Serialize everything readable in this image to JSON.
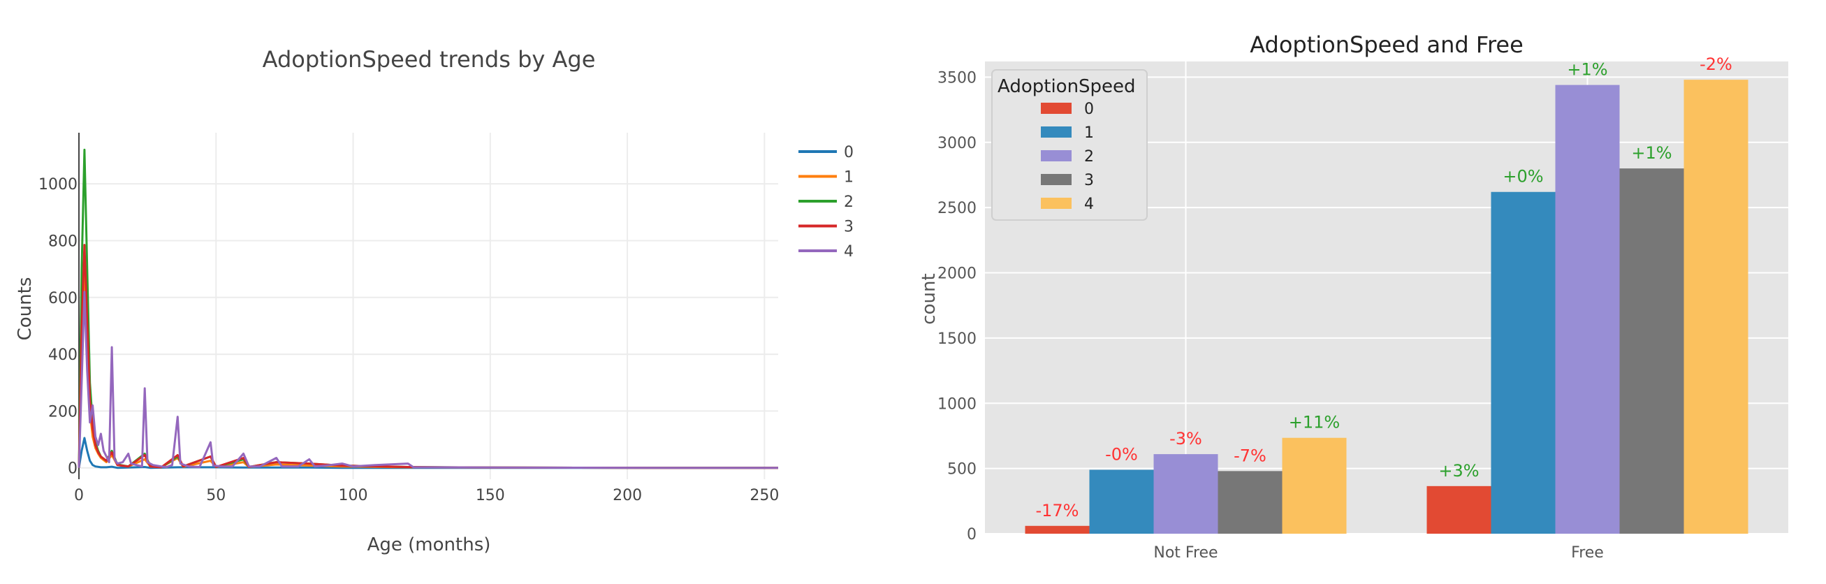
{
  "chart_data": [
    {
      "type": "line",
      "title": "AdoptionSpeed trends by Age",
      "xlabel": "Age (months)",
      "ylabel": "Counts",
      "xlim": [
        0,
        255
      ],
      "ylim": [
        -40,
        1180
      ],
      "xticks": [
        0,
        50,
        100,
        150,
        200,
        250
      ],
      "yticks": [
        0,
        200,
        400,
        600,
        800,
        1000
      ],
      "grid": true,
      "legend_position": "top-right",
      "series": [
        {
          "name": "0",
          "color": "#1f77b4",
          "points": [
            [
              0,
              0
            ],
            [
              1,
              60
            ],
            [
              2,
              105
            ],
            [
              3,
              60
            ],
            [
              4,
              25
            ],
            [
              5,
              10
            ],
            [
              6,
              5
            ],
            [
              8,
              2
            ],
            [
              10,
              2
            ],
            [
              12,
              4
            ],
            [
              14,
              0
            ],
            [
              24,
              3
            ],
            [
              26,
              0
            ],
            [
              36,
              2
            ],
            [
              48,
              2
            ],
            [
              60,
              1
            ],
            [
              72,
              1
            ],
            [
              84,
              1
            ],
            [
              96,
              0
            ],
            [
              120,
              0
            ],
            [
              200,
              0
            ],
            [
              250,
              0
            ]
          ]
        },
        {
          "name": "1",
          "color": "#ff7f0e",
          "points": [
            [
              0,
              0
            ],
            [
              1,
              430
            ],
            [
              2,
              700
            ],
            [
              3,
              420
            ],
            [
              4,
              200
            ],
            [
              5,
              110
            ],
            [
              6,
              70
            ],
            [
              7,
              50
            ],
            [
              8,
              35
            ],
            [
              10,
              20
            ],
            [
              12,
              45
            ],
            [
              14,
              10
            ],
            [
              18,
              5
            ],
            [
              24,
              30
            ],
            [
              26,
              5
            ],
            [
              30,
              2
            ],
            [
              36,
              35
            ],
            [
              38,
              4
            ],
            [
              48,
              25
            ],
            [
              50,
              3
            ],
            [
              60,
              20
            ],
            [
              62,
              3
            ],
            [
              72,
              12
            ],
            [
              84,
              8
            ],
            [
              96,
              5
            ],
            [
              120,
              2
            ],
            [
              150,
              1
            ],
            [
              212,
              0
            ],
            [
              255,
              0
            ]
          ]
        },
        {
          "name": "2",
          "color": "#2ca02c",
          "points": [
            [
              0,
              0
            ],
            [
              1,
              700
            ],
            [
              2,
              1120
            ],
            [
              3,
              700
            ],
            [
              4,
              300
            ],
            [
              5,
              160
            ],
            [
              6,
              90
            ],
            [
              7,
              60
            ],
            [
              8,
              40
            ],
            [
              10,
              25
            ],
            [
              12,
              60
            ],
            [
              14,
              12
            ],
            [
              18,
              5
            ],
            [
              24,
              50
            ],
            [
              26,
              6
            ],
            [
              30,
              2
            ],
            [
              36,
              40
            ],
            [
              38,
              5
            ],
            [
              48,
              40
            ],
            [
              50,
              3
            ],
            [
              60,
              30
            ],
            [
              62,
              3
            ],
            [
              72,
              20
            ],
            [
              84,
              15
            ],
            [
              96,
              8
            ],
            [
              120,
              3
            ],
            [
              150,
              1
            ],
            [
              212,
              0
            ],
            [
              255,
              0
            ]
          ]
        },
        {
          "name": "3",
          "color": "#d62728",
          "points": [
            [
              0,
              0
            ],
            [
              1,
              500
            ],
            [
              2,
              785
            ],
            [
              3,
              520
            ],
            [
              4,
              240
            ],
            [
              5,
              140
            ],
            [
              6,
              80
            ],
            [
              7,
              55
            ],
            [
              8,
              40
            ],
            [
              10,
              25
            ],
            [
              12,
              55
            ],
            [
              14,
              10
            ],
            [
              18,
              5
            ],
            [
              24,
              45
            ],
            [
              26,
              5
            ],
            [
              30,
              2
            ],
            [
              36,
              45
            ],
            [
              38,
              5
            ],
            [
              48,
              40
            ],
            [
              50,
              3
            ],
            [
              60,
              35
            ],
            [
              62,
              3
            ],
            [
              72,
              20
            ],
            [
              84,
              15
            ],
            [
              96,
              8
            ],
            [
              120,
              3
            ],
            [
              150,
              1
            ],
            [
              212,
              0
            ],
            [
              255,
              0
            ]
          ]
        },
        {
          "name": "4",
          "color": "#9467bd",
          "points": [
            [
              0,
              0
            ],
            [
              1,
              300
            ],
            [
              2,
              620
            ],
            [
              3,
              340
            ],
            [
              4,
              160
            ],
            [
              5,
              220
            ],
            [
              6,
              110
            ],
            [
              7,
              80
            ],
            [
              8,
              120
            ],
            [
              9,
              60
            ],
            [
              10,
              40
            ],
            [
              11,
              20
            ],
            [
              12,
              425
            ],
            [
              13,
              30
            ],
            [
              14,
              15
            ],
            [
              16,
              20
            ],
            [
              18,
              50
            ],
            [
              19,
              15
            ],
            [
              21,
              10
            ],
            [
              23,
              5
            ],
            [
              24,
              280
            ],
            [
              25,
              20
            ],
            [
              27,
              10
            ],
            [
              30,
              5
            ],
            [
              32,
              3
            ],
            [
              34,
              10
            ],
            [
              36,
              180
            ],
            [
              37,
              15
            ],
            [
              40,
              5
            ],
            [
              44,
              3
            ],
            [
              48,
              90
            ],
            [
              49,
              8
            ],
            [
              52,
              5
            ],
            [
              56,
              5
            ],
            [
              60,
              50
            ],
            [
              62,
              5
            ],
            [
              66,
              5
            ],
            [
              72,
              35
            ],
            [
              74,
              5
            ],
            [
              80,
              5
            ],
            [
              84,
              30
            ],
            [
              86,
              5
            ],
            [
              90,
              8
            ],
            [
              96,
              15
            ],
            [
              100,
              5
            ],
            [
              108,
              10
            ],
            [
              120,
              15
            ],
            [
              122,
              2
            ],
            [
              150,
              1
            ],
            [
              212,
              0
            ],
            [
              255,
              0
            ]
          ]
        }
      ]
    },
    {
      "type": "bar",
      "title": "AdoptionSpeed and Free",
      "xlabel": "",
      "ylabel": "count",
      "ylim": [
        0,
        3620
      ],
      "yticks": [
        0,
        500,
        1000,
        1500,
        2000,
        2500,
        3000,
        3500
      ],
      "grid": true,
      "legend_position": "top-left",
      "legend_title": "AdoptionSpeed",
      "categories": [
        "Not Free",
        "Free"
      ],
      "series": [
        {
          "name": "0",
          "color": "#e24a33",
          "values": [
            60,
            365
          ],
          "labels": [
            "-17%",
            "+3%"
          ]
        },
        {
          "name": "1",
          "color": "#348abd",
          "values": [
            490,
            2620
          ],
          "labels": [
            "-0%",
            "+0%"
          ]
        },
        {
          "name": "2",
          "color": "#988ed5",
          "values": [
            610,
            3440
          ],
          "labels": [
            "-3%",
            "+1%"
          ]
        },
        {
          "name": "3",
          "color": "#777777",
          "values": [
            480,
            2800
          ],
          "labels": [
            "-7%",
            "+1%"
          ]
        },
        {
          "name": "4",
          "color": "#fbc15e",
          "values": [
            735,
            3480
          ],
          "labels": [
            "+11%",
            "-2%"
          ]
        }
      ],
      "label_colors": {
        "positive": "#2ca02c",
        "negative": "#ff3333"
      }
    }
  ]
}
